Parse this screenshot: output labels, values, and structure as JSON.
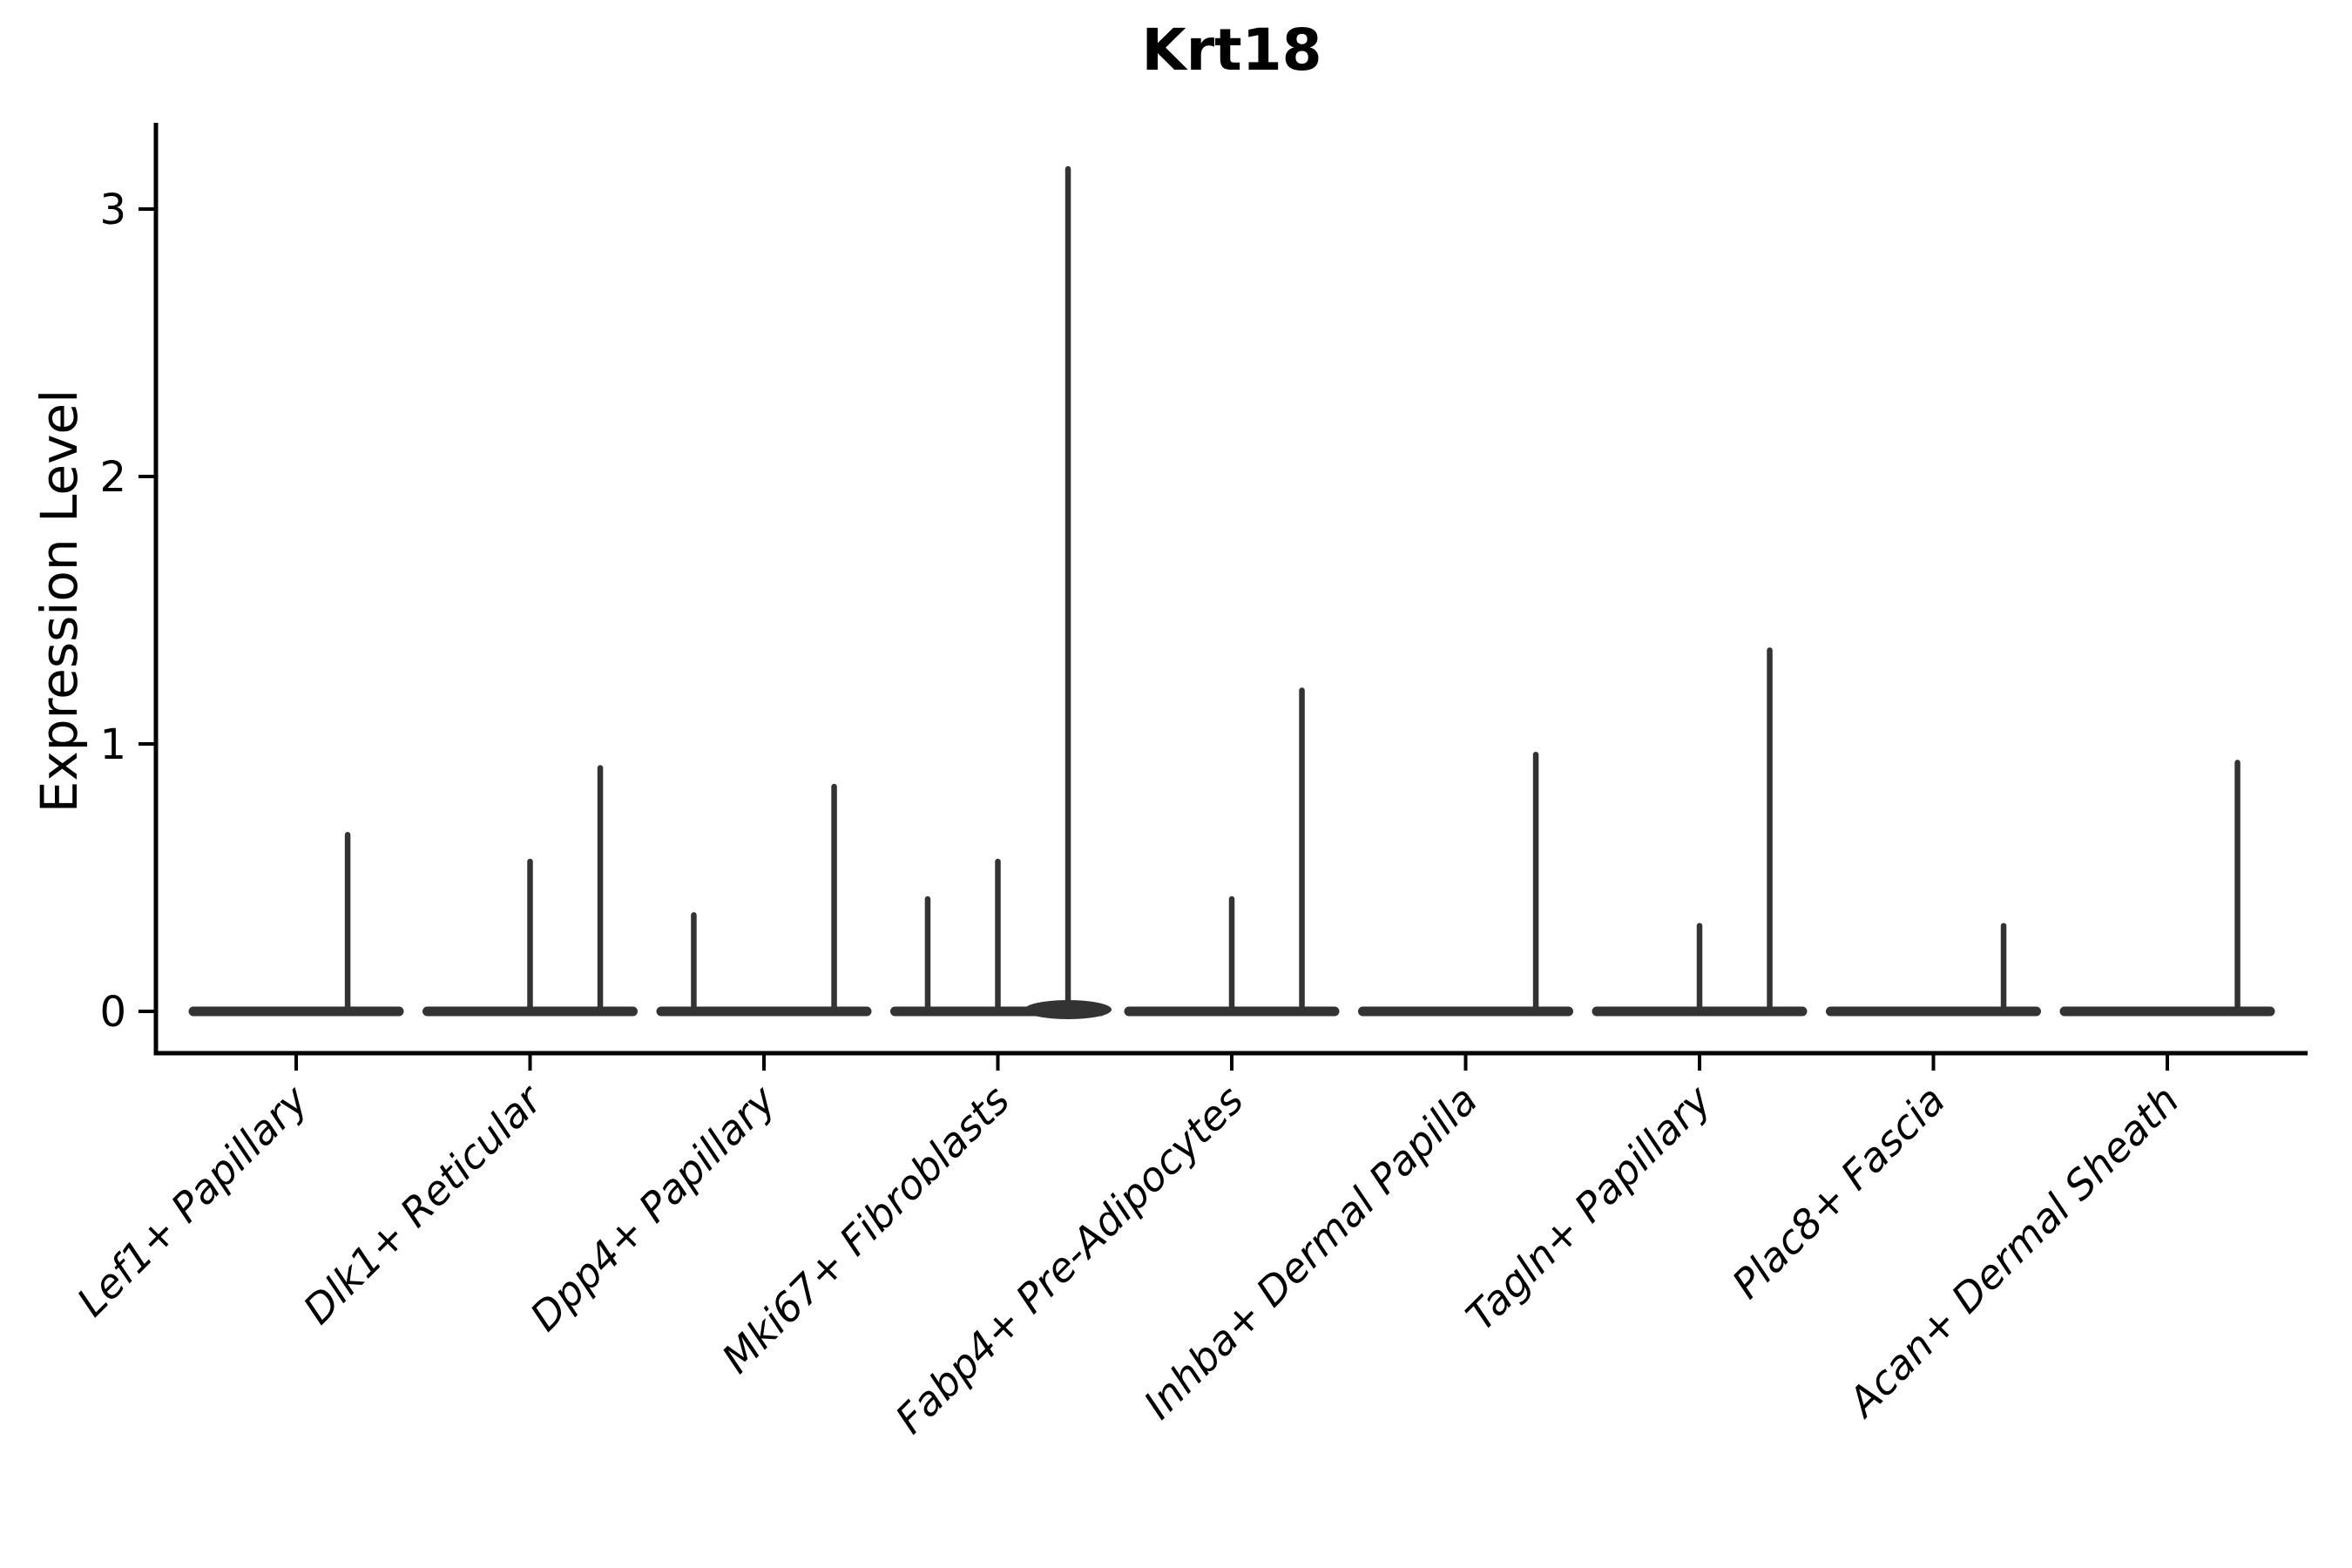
{
  "chart_data": {
    "type": "violin",
    "title": "Krt18",
    "ylabel": "Expression Level",
    "xlabel": "",
    "yticks": [
      0,
      1,
      2,
      3
    ],
    "ylim": [
      -0.16,
      3.32
    ],
    "grid": false,
    "legend": "none",
    "colors": {
      "axis": "#000000",
      "text": "#000000",
      "violin": "#333333",
      "background": "#ffffff"
    },
    "categories": [
      "Lef1+ Papillary",
      "Dlk1+ Reticular",
      "Dpp4+ Papillary",
      "Mki67+ Fibroblasts",
      "Fabp4+ Pre-Adipocytes",
      "Inhba+ Dermal Papilla",
      "Tagln+ Papillary",
      "Plac8+ Fascia",
      "Acan+ Dermal Sheath"
    ],
    "violins": [
      {
        "category": "Lef1+ Papillary",
        "base_value": 0,
        "spikes": [
          {
            "offset": 0.22,
            "value": 0.67
          }
        ]
      },
      {
        "category": "Dlk1+ Reticular",
        "base_value": 0,
        "spikes": [
          {
            "offset": 0.0,
            "value": 0.57
          },
          {
            "offset": 0.3,
            "value": 0.92
          }
        ]
      },
      {
        "category": "Dpp4+ Papillary",
        "base_value": 0,
        "spikes": [
          {
            "offset": -0.3,
            "value": 0.37
          },
          {
            "offset": 0.3,
            "value": 0.85
          }
        ]
      },
      {
        "category": "Mki67+ Fibroblasts",
        "base_value": 0,
        "spikes": [
          {
            "offset": -0.3,
            "value": 0.43
          },
          {
            "offset": 0.0,
            "value": 0.57
          },
          {
            "offset": 0.3,
            "value": 3.16,
            "bulge": true
          }
        ]
      },
      {
        "category": "Fabp4+ Pre-Adipocytes",
        "base_value": 0,
        "spikes": [
          {
            "offset": 0.0,
            "value": 0.43
          },
          {
            "offset": 0.3,
            "value": 1.21
          }
        ]
      },
      {
        "category": "Inhba+ Dermal Papilla",
        "base_value": 0,
        "spikes": [
          {
            "offset": 0.3,
            "value": 0.97
          }
        ]
      },
      {
        "category": "Tagln+ Papillary",
        "base_value": 0,
        "spikes": [
          {
            "offset": 0.0,
            "value": 0.33
          },
          {
            "offset": 0.3,
            "value": 1.36
          }
        ]
      },
      {
        "category": "Plac8+ Fascia",
        "base_value": 0,
        "spikes": [
          {
            "offset": 0.3,
            "value": 0.33
          }
        ]
      },
      {
        "category": "Acan+ Dermal Sheath",
        "base_value": 0,
        "spikes": [
          {
            "offset": 0.3,
            "value": 0.94
          }
        ]
      }
    ]
  }
}
